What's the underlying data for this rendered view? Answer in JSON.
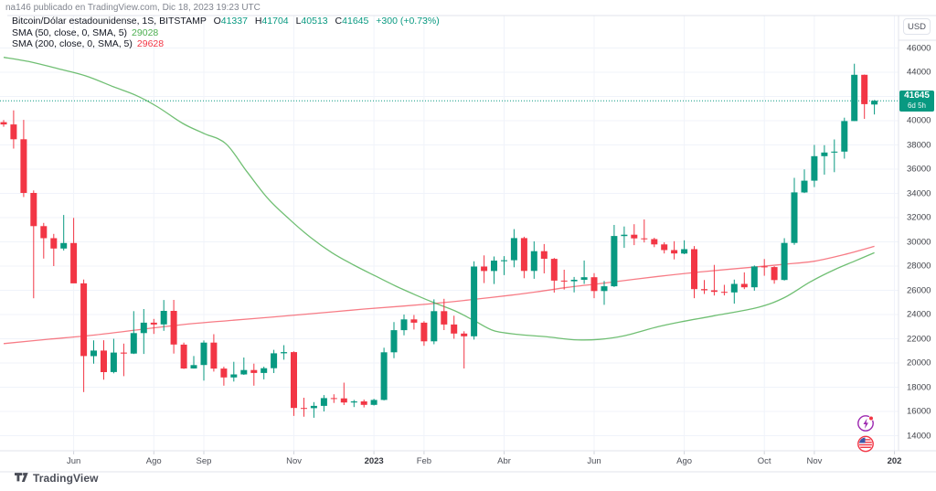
{
  "header": {
    "caption": "na146 publicado en TradingView.com, Dic 18, 2023 19:23 UTC"
  },
  "legend": {
    "symbol": "Bitcoin/Dólar estadounidense, 1S, BITSTAMP",
    "ohlc": {
      "o": {
        "label": "O",
        "value": "41337"
      },
      "h": {
        "label": "H",
        "value": "41704"
      },
      "l": {
        "label": "L",
        "value": "40513"
      },
      "c": {
        "label": "C",
        "value": "41645"
      }
    },
    "change": "+300 (+0.73%)",
    "indicators": [
      {
        "name": "SMA (50, close, 0, SMA, 5)",
        "value": "29028"
      },
      {
        "name": "SMA (200, close, 0, SMA, 5)",
        "value": "29628"
      }
    ]
  },
  "price_scale": {
    "currency": "USD",
    "labels": [
      "46000",
      "44000",
      "42000",
      "40000",
      "38000",
      "36000",
      "34000",
      "32000",
      "30000",
      "28000",
      "26000",
      "24000",
      "22000",
      "20000",
      "18000",
      "16000",
      "14000"
    ],
    "badge": {
      "price": "41645",
      "countdown": "6d 5h"
    }
  },
  "time_scale": {
    "labels": [
      {
        "text": "Jun",
        "index": 7,
        "year": false
      },
      {
        "text": "Ago",
        "index": 15,
        "year": false
      },
      {
        "text": "Sep",
        "index": 20,
        "year": false
      },
      {
        "text": "Nov",
        "index": 29,
        "year": false
      },
      {
        "text": "2023",
        "index": 37,
        "year": true
      },
      {
        "text": "Feb",
        "index": 42,
        "year": false
      },
      {
        "text": "Abr",
        "index": 50,
        "year": false
      },
      {
        "text": "Jun",
        "index": 59,
        "year": false
      },
      {
        "text": "Ago",
        "index": 68,
        "year": false
      },
      {
        "text": "Oct",
        "index": 76,
        "year": false
      },
      {
        "text": "Nov",
        "index": 81,
        "year": false
      },
      {
        "text": "202",
        "index": 89,
        "year": true
      }
    ]
  },
  "watermark": {
    "brand": "TradingView"
  },
  "colors": {
    "up": "#089981",
    "down": "#f23645",
    "sma50": "#4caf50",
    "sma200": "#f23645",
    "grid": "#f0f3fa",
    "axis_border": "#e0e3eb",
    "badge_bg": "#089981"
  },
  "chart_data": {
    "type": "candlestick",
    "title": "Bitcoin/Dólar estadounidense, 1S, BITSTAMP",
    "interval": "1S",
    "currency": "USD",
    "y_axis": {
      "min": 14000,
      "max": 46000,
      "step": 2000
    },
    "last_price": 41645,
    "last_candle": {
      "open": 41337,
      "high": 41704,
      "low": 40513,
      "close": 41645,
      "change": "+300 (+0.73%)"
    },
    "sma50_last": 29028,
    "sma200_last": 29628,
    "candles": [
      [
        "2022-04-18",
        39880,
        40050,
        39500,
        39690
      ],
      [
        "2022-04-25",
        39690,
        40850,
        37700,
        38470
      ],
      [
        "2022-05-02",
        38470,
        40070,
        33700,
        34040
      ],
      [
        "2022-05-09",
        34040,
        34240,
        25340,
        31300
      ],
      [
        "2022-05-16",
        31300,
        31560,
        28620,
        30300
      ],
      [
        "2022-05-23",
        30300,
        30660,
        28000,
        29450
      ],
      [
        "2022-05-30",
        29450,
        32220,
        29280,
        29900
      ],
      [
        "2022-06-06",
        29900,
        31980,
        26700,
        26570
      ],
      [
        "2022-06-13",
        26570,
        26890,
        17600,
        20570
      ],
      [
        "2022-06-20",
        20570,
        21870,
        19950,
        21030
      ],
      [
        "2022-06-27",
        21030,
        21880,
        18630,
        19250
      ],
      [
        "2022-07-04",
        19250,
        22000,
        19150,
        20860
      ],
      [
        "2022-07-11",
        20860,
        21600,
        18910,
        20780
      ],
      [
        "2022-07-18",
        20780,
        24280,
        20740,
        22470
      ],
      [
        "2022-07-25",
        22470,
        24450,
        20750,
        23330
      ],
      [
        "2022-08-01",
        23330,
        23640,
        22400,
        23180
      ],
      [
        "2022-08-08",
        23180,
        25200,
        22660,
        24300
      ],
      [
        "2022-08-15",
        24300,
        25210,
        20780,
        21520
      ],
      [
        "2022-08-22",
        21520,
        21680,
        19510,
        19550
      ],
      [
        "2022-08-29",
        19550,
        20570,
        19540,
        19830
      ],
      [
        "2022-09-05",
        19830,
        21860,
        18540,
        21680
      ],
      [
        "2022-09-12",
        21680,
        22380,
        19290,
        19540
      ],
      [
        "2022-09-19",
        19540,
        19690,
        18125,
        18810
      ],
      [
        "2022-09-26",
        18810,
        20100,
        18470,
        19060
      ],
      [
        "2022-10-03",
        19060,
        20450,
        19020,
        19420
      ],
      [
        "2022-10-10",
        19420,
        19950,
        18130,
        19180
      ],
      [
        "2022-10-17",
        19180,
        19700,
        18650,
        19570
      ],
      [
        "2022-10-24",
        19570,
        21085,
        19170,
        20800
      ],
      [
        "2022-10-31",
        20800,
        21470,
        20270,
        20900
      ],
      [
        "2022-11-07",
        20900,
        20960,
        15630,
        16290
      ],
      [
        "2022-11-14",
        16290,
        17130,
        15570,
        16270
      ],
      [
        "2022-11-21",
        16270,
        16770,
        15480,
        16460
      ],
      [
        "2022-11-28",
        16460,
        17350,
        16000,
        17100
      ],
      [
        "2022-12-05",
        17100,
        17420,
        16700,
        17080
      ],
      [
        "2022-12-12",
        17080,
        18380,
        16530,
        16740
      ],
      [
        "2022-12-19",
        16740,
        16950,
        16360,
        16830
      ],
      [
        "2022-12-26",
        16830,
        16980,
        16330,
        16540
      ],
      [
        "2023-01-02",
        16540,
        17040,
        16490,
        16950
      ],
      [
        "2023-01-09",
        16950,
        21260,
        16910,
        20880
      ],
      [
        "2023-01-16",
        20880,
        23370,
        20400,
        22710
      ],
      [
        "2023-01-23",
        22710,
        24000,
        22290,
        23600
      ],
      [
        "2023-01-30",
        23600,
        23960,
        22760,
        23330
      ],
      [
        "2023-02-06",
        23330,
        23450,
        21420,
        21790
      ],
      [
        "2023-02-13",
        21790,
        25250,
        21550,
        24280
      ],
      [
        "2023-02-20",
        24280,
        25300,
        22720,
        23180
      ],
      [
        "2023-02-27",
        23180,
        23900,
        22000,
        22430
      ],
      [
        "2023-03-06",
        22430,
        22620,
        19550,
        22200
      ],
      [
        "2023-03-13",
        22200,
        28390,
        21930,
        27960
      ],
      [
        "2023-03-20",
        27960,
        28880,
        26600,
        27590
      ],
      [
        "2023-03-27",
        27590,
        28790,
        26520,
        28450
      ],
      [
        "2023-04-03",
        28400,
        28820,
        27250,
        28480
      ],
      [
        "2023-04-10",
        28480,
        31050,
        27900,
        30310
      ],
      [
        "2023-04-17",
        30310,
        30420,
        27000,
        27600
      ],
      [
        "2023-04-24",
        27600,
        30040,
        26950,
        29230
      ],
      [
        "2023-05-01",
        29230,
        29820,
        27400,
        28600
      ],
      [
        "2023-05-08",
        28600,
        28670,
        25810,
        26800
      ],
      [
        "2023-05-15",
        26800,
        27700,
        26060,
        26750
      ],
      [
        "2023-05-22",
        26750,
        27100,
        25830,
        26870
      ],
      [
        "2023-05-29",
        26870,
        28460,
        26530,
        27080
      ],
      [
        "2023-06-05",
        27080,
        27420,
        25350,
        25940
      ],
      [
        "2023-06-12",
        25940,
        26780,
        24800,
        26330
      ],
      [
        "2023-06-19",
        26330,
        31400,
        26270,
        30480
      ],
      [
        "2023-06-26",
        30480,
        31270,
        29500,
        30590
      ],
      [
        "2023-07-03",
        30590,
        31460,
        29730,
        30290
      ],
      [
        "2023-07-10",
        30290,
        31850,
        29950,
        30230
      ],
      [
        "2023-07-17",
        30230,
        30340,
        29560,
        29790
      ],
      [
        "2023-07-24",
        29790,
        29960,
        29040,
        29320
      ],
      [
        "2023-07-31",
        29320,
        30050,
        28550,
        29040
      ],
      [
        "2023-08-07",
        29040,
        30130,
        28980,
        29400
      ],
      [
        "2023-08-14",
        29400,
        29650,
        25350,
        26100
      ],
      [
        "2023-08-21",
        26100,
        26850,
        25700,
        26000
      ],
      [
        "2023-08-28",
        26000,
        28100,
        25570,
        25870
      ],
      [
        "2023-09-04",
        25870,
        26450,
        25580,
        25830
      ],
      [
        "2023-09-11",
        25830,
        26880,
        24900,
        26530
      ],
      [
        "2023-09-18",
        26530,
        27480,
        26100,
        26250
      ],
      [
        "2023-09-25",
        26250,
        28050,
        25970,
        27970
      ],
      [
        "2023-10-02",
        27970,
        28580,
        27200,
        27920
      ],
      [
        "2023-10-09",
        27920,
        27990,
        26540,
        26850
      ],
      [
        "2023-10-16",
        26850,
        30300,
        26810,
        29910
      ],
      [
        "2023-10-23",
        29910,
        35280,
        29750,
        34080
      ],
      [
        "2023-10-30",
        34080,
        35980,
        34030,
        35050
      ],
      [
        "2023-11-06",
        35050,
        38000,
        34520,
        37070
      ],
      [
        "2023-11-13",
        37070,
        37980,
        35550,
        37370
      ],
      [
        "2023-11-20",
        37370,
        38450,
        35750,
        37450
      ],
      [
        "2023-11-27",
        37450,
        40250,
        36870,
        39970
      ],
      [
        "2023-12-04",
        39970,
        44700,
        39970,
        43790
      ],
      [
        "2023-12-11",
        43790,
        43810,
        40150,
        41370
      ],
      [
        "2023-12-18",
        41337,
        41704,
        40513,
        41645
      ]
    ],
    "sma50_points": [
      [
        0,
        45230
      ],
      [
        2.7,
        44850
      ],
      [
        5.4,
        44300
      ],
      [
        8.2,
        43700
      ],
      [
        11,
        42790
      ],
      [
        13.2,
        42100
      ],
      [
        15.4,
        41130
      ],
      [
        17.9,
        39770
      ],
      [
        20,
        38950
      ],
      [
        22.2,
        38100
      ],
      [
        24.3,
        35800
      ],
      [
        26.4,
        33580
      ],
      [
        28.5,
        31900
      ],
      [
        30.7,
        30340
      ],
      [
        32.8,
        29100
      ],
      [
        35,
        28075
      ],
      [
        37.1,
        27200
      ],
      [
        39.2,
        26340
      ],
      [
        41.2,
        25600
      ],
      [
        43.2,
        24910
      ],
      [
        45.1,
        24300
      ],
      [
        47,
        23500
      ],
      [
        49,
        22660
      ],
      [
        51.5,
        22350
      ],
      [
        54.4,
        22150
      ],
      [
        57,
        21920
      ],
      [
        59.5,
        21950
      ],
      [
        62,
        22250
      ],
      [
        65.4,
        23000
      ],
      [
        68,
        23450
      ],
      [
        71,
        23900
      ],
      [
        75.4,
        24600
      ],
      [
        78,
        25400
      ],
      [
        80.6,
        26700
      ],
      [
        83,
        27700
      ],
      [
        85,
        28400
      ],
      [
        87,
        29100
      ]
    ],
    "sma200_points": [
      [
        0,
        21600
      ],
      [
        4.5,
        21960
      ],
      [
        9,
        22300
      ],
      [
        13.5,
        22750
      ],
      [
        17.9,
        23170
      ],
      [
        22.5,
        23500
      ],
      [
        27,
        23800
      ],
      [
        31.5,
        24120
      ],
      [
        36,
        24450
      ],
      [
        40,
        24700
      ],
      [
        43.5,
        24950
      ],
      [
        47,
        25250
      ],
      [
        50.7,
        25600
      ],
      [
        53.5,
        25900
      ],
      [
        56.3,
        26240
      ],
      [
        60,
        26600
      ],
      [
        65.4,
        27150
      ],
      [
        70,
        27550
      ],
      [
        75.4,
        27950
      ],
      [
        78,
        28150
      ],
      [
        81,
        28400
      ],
      [
        84,
        28950
      ],
      [
        87,
        29630
      ]
    ]
  }
}
